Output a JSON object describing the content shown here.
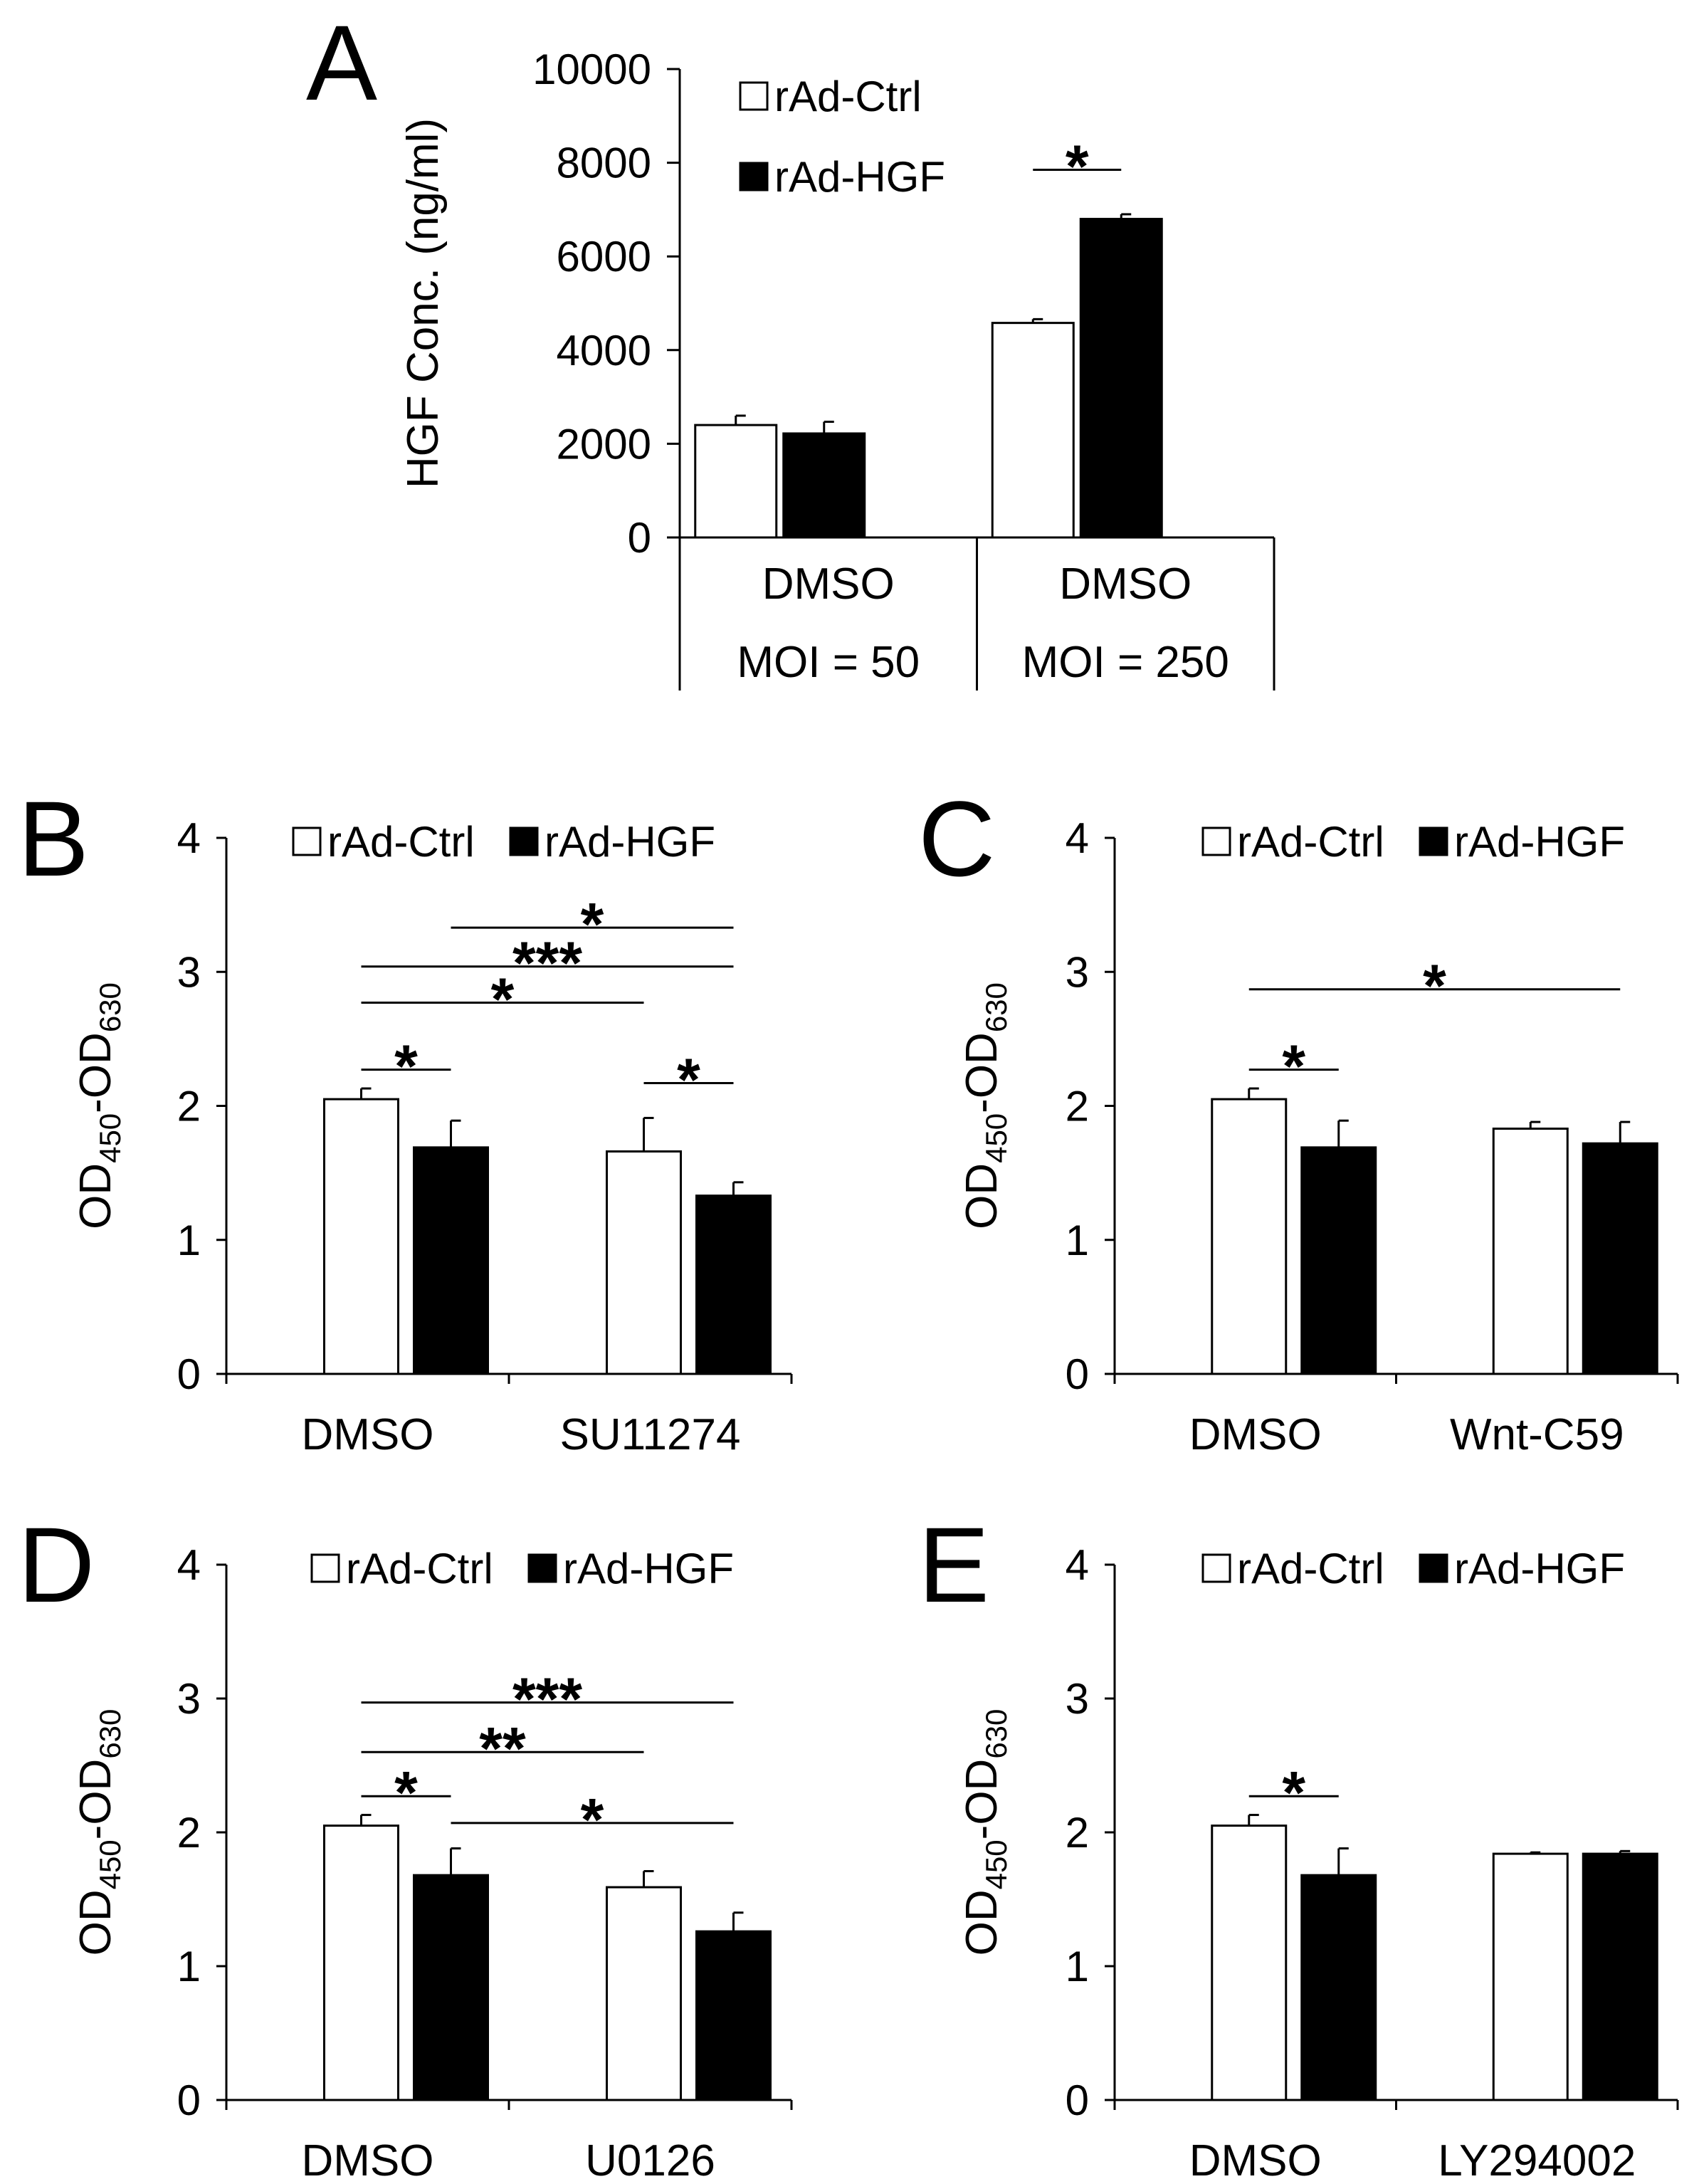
{
  "chart_data": [
    {
      "panel": "A",
      "type": "bar",
      "ylabel": "HGF Conc. (ng/ml)",
      "ylim": [
        0,
        10000
      ],
      "yticks": [
        0,
        2000,
        4000,
        6000,
        8000,
        10000
      ],
      "categories": [
        [
          "DMSO",
          "MOI = 50"
        ],
        [
          "DMSO",
          "MOI = 250"
        ]
      ],
      "series": [
        {
          "name": "rAd-Ctrl",
          "values": [
            2400,
            4580
          ],
          "errors": [
            200,
            80
          ]
        },
        {
          "name": "rAd-HGF",
          "values": [
            2220,
            6800
          ],
          "errors": [
            250,
            100
          ]
        }
      ],
      "significance": [
        {
          "label": "*",
          "from_group": 1,
          "from_series": 0,
          "to_group": 1,
          "to_series": 1,
          "y": 7850
        }
      ],
      "legend": [
        "rAd-Ctrl",
        "rAd-HGF"
      ],
      "legend_position": "top-left"
    },
    {
      "panel": "B",
      "type": "bar",
      "ylabel": {
        "main": "OD",
        "sub1": "450",
        "mid": "-OD",
        "sub2": "630"
      },
      "ylim": [
        0,
        4
      ],
      "yticks": [
        0,
        1,
        2,
        3,
        4
      ],
      "categories": [
        "DMSO",
        "SU11274"
      ],
      "series": [
        {
          "name": "rAd-Ctrl",
          "values": [
            2.05,
            1.66
          ],
          "errors": [
            0.08,
            0.25
          ]
        },
        {
          "name": "rAd-HGF",
          "values": [
            1.69,
            1.33
          ],
          "errors": [
            0.2,
            0.1
          ]
        }
      ],
      "significance": [
        {
          "label": "*",
          "from_group": 0,
          "from_series": 0,
          "to_group": 0,
          "to_series": 1,
          "y": 2.27
        },
        {
          "label": "*",
          "from_group": 0,
          "from_series": 0,
          "to_group": 1,
          "to_series": 0,
          "y": 2.77
        },
        {
          "label": "***",
          "from_group": 0,
          "from_series": 0,
          "to_group": 1,
          "to_series": 1,
          "y": 3.04
        },
        {
          "label": "*",
          "from_group": 0,
          "from_series": 1,
          "to_group": 1,
          "to_series": 1,
          "y": 3.33
        },
        {
          "label": "*",
          "from_group": 1,
          "from_series": 0,
          "to_group": 1,
          "to_series": 1,
          "y": 2.17
        }
      ],
      "legend": [
        "rAd-Ctrl",
        "rAd-HGF"
      ],
      "legend_position": "top"
    },
    {
      "panel": "C",
      "type": "bar",
      "ylabel": {
        "main": "OD",
        "sub1": "450",
        "mid": "-OD",
        "sub2": "630"
      },
      "ylim": [
        0,
        4
      ],
      "yticks": [
        0,
        1,
        2,
        3,
        4
      ],
      "categories": [
        "DMSO",
        "Wnt-C59"
      ],
      "series": [
        {
          "name": "rAd-Ctrl",
          "values": [
            2.05,
            1.83
          ],
          "errors": [
            0.08,
            0.05
          ]
        },
        {
          "name": "rAd-HGF",
          "values": [
            1.69,
            1.72
          ],
          "errors": [
            0.2,
            0.16
          ]
        }
      ],
      "significance": [
        {
          "label": "*",
          "from_group": 0,
          "from_series": 0,
          "to_group": 0,
          "to_series": 1,
          "y": 2.27
        },
        {
          "label": "*",
          "from_group": 0,
          "from_series": 0,
          "to_group": 1,
          "to_series": 1,
          "y": 2.87
        }
      ],
      "legend": [
        "rAd-Ctrl",
        "rAd-HGF"
      ],
      "legend_position": "top"
    },
    {
      "panel": "D",
      "type": "bar",
      "ylabel": {
        "main": "OD",
        "sub1": "450",
        "mid": "-OD",
        "sub2": "630"
      },
      "ylim": [
        0,
        4
      ],
      "yticks": [
        0,
        1,
        2,
        3,
        4
      ],
      "categories": [
        "DMSO",
        "U0126"
      ],
      "series": [
        {
          "name": "rAd-Ctrl",
          "values": [
            2.05,
            1.59
          ],
          "errors": [
            0.08,
            0.12
          ]
        },
        {
          "name": "rAd-HGF",
          "values": [
            1.68,
            1.26
          ],
          "errors": [
            0.2,
            0.14
          ]
        }
      ],
      "significance": [
        {
          "label": "*",
          "from_group": 0,
          "from_series": 0,
          "to_group": 0,
          "to_series": 1,
          "y": 2.27
        },
        {
          "label": "**",
          "from_group": 0,
          "from_series": 0,
          "to_group": 1,
          "to_series": 0,
          "y": 2.6
        },
        {
          "label": "***",
          "from_group": 0,
          "from_series": 0,
          "to_group": 1,
          "to_series": 1,
          "y": 2.97
        },
        {
          "label": "*",
          "from_group": 0,
          "from_series": 1,
          "to_group": 1,
          "to_series": 1,
          "y": 2.07
        }
      ],
      "legend": [
        "rAd-Ctrl",
        "rAd-HGF"
      ],
      "legend_position": "top"
    },
    {
      "panel": "E",
      "type": "bar",
      "ylabel": {
        "main": "OD",
        "sub1": "450",
        "mid": "-OD",
        "sub2": "630"
      },
      "ylim": [
        0,
        4
      ],
      "yticks": [
        0,
        1,
        2,
        3,
        4
      ],
      "categories": [
        "DMSO",
        "LY294002"
      ],
      "series": [
        {
          "name": "rAd-Ctrl",
          "values": [
            2.05,
            1.84
          ],
          "errors": [
            0.08,
            0.01
          ]
        },
        {
          "name": "rAd-HGF",
          "values": [
            1.68,
            1.84
          ],
          "errors": [
            0.2,
            0.02
          ]
        }
      ],
      "significance": [
        {
          "label": "*",
          "from_group": 0,
          "from_series": 0,
          "to_group": 0,
          "to_series": 1,
          "y": 2.27
        }
      ],
      "legend": [
        "rAd-Ctrl",
        "rAd-HGF"
      ],
      "legend_position": "top"
    }
  ]
}
